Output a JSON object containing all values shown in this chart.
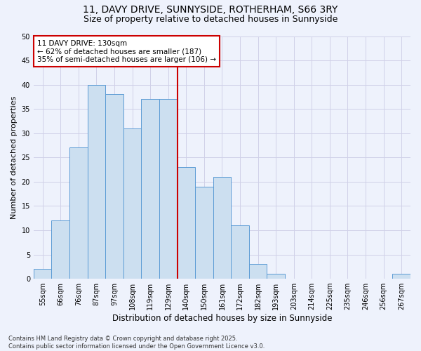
{
  "title_line1": "11, DAVY DRIVE, SUNNYSIDE, ROTHERHAM, S66 3RY",
  "title_line2": "Size of property relative to detached houses in Sunnyside",
  "xlabel": "Distribution of detached houses by size in Sunnyside",
  "ylabel": "Number of detached properties",
  "categories": [
    "55sqm",
    "66sqm",
    "76sqm",
    "87sqm",
    "97sqm",
    "108sqm",
    "119sqm",
    "129sqm",
    "140sqm",
    "150sqm",
    "161sqm",
    "172sqm",
    "182sqm",
    "193sqm",
    "203sqm",
    "214sqm",
    "225sqm",
    "235sqm",
    "246sqm",
    "256sqm",
    "267sqm"
  ],
  "values": [
    2,
    12,
    27,
    40,
    38,
    31,
    37,
    37,
    23,
    19,
    21,
    11,
    3,
    1,
    0,
    0,
    0,
    0,
    0,
    0,
    1
  ],
  "bar_color": "#ccdff0",
  "bar_edge_color": "#5b9bd5",
  "vline_x": 8.0,
  "vline_color": "#cc0000",
  "annotation_text": "11 DAVY DRIVE: 130sqm\n← 62% of detached houses are smaller (187)\n35% of semi-detached houses are larger (106) →",
  "annotation_box_color": "#ffffff",
  "annotation_box_edge": "#cc0000",
  "ylim": [
    0,
    50
  ],
  "yticks": [
    0,
    5,
    10,
    15,
    20,
    25,
    30,
    35,
    40,
    45,
    50
  ],
  "grid_color": "#d0d0e8",
  "background_color": "#eef2fc",
  "footnote": "Contains HM Land Registry data © Crown copyright and database right 2025.\nContains public sector information licensed under the Open Government Licence v3.0.",
  "title_fontsize": 10,
  "subtitle_fontsize": 9,
  "xlabel_fontsize": 8.5,
  "ylabel_fontsize": 8,
  "tick_fontsize": 7,
  "annotation_fontsize": 7.5,
  "footnote_fontsize": 6
}
